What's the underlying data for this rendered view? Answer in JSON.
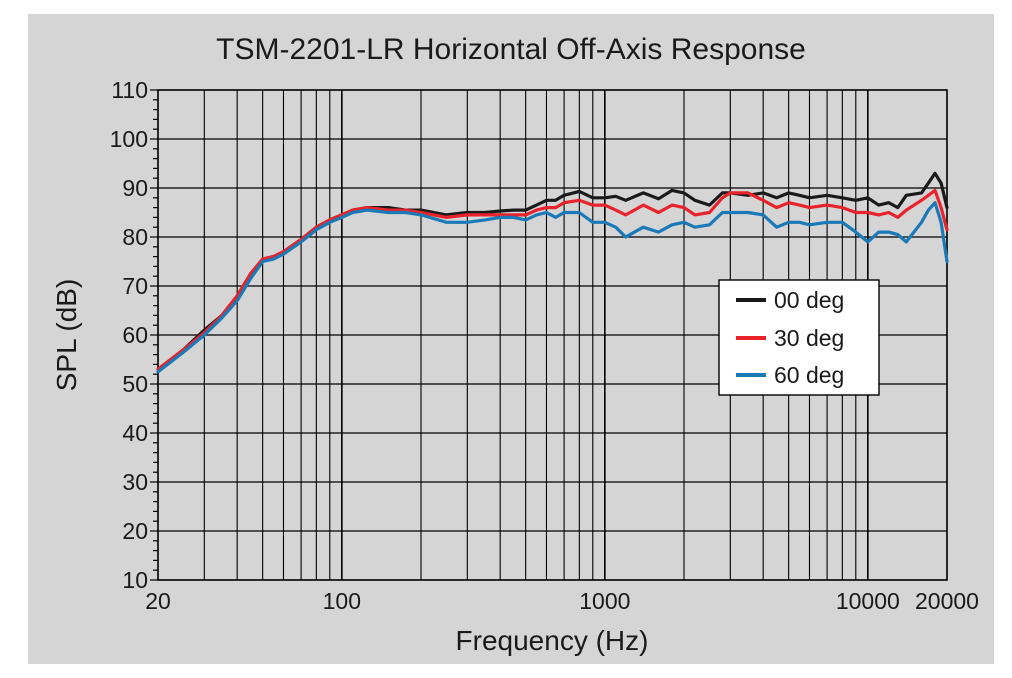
{
  "chart_data": {
    "type": "line",
    "title": "TSM-2201-LR Horizontal Off-Axis Response",
    "xlabel": "Frequency (Hz)",
    "ylabel": "SPL (dB)",
    "x_scale": "log",
    "xlim": [
      20,
      20000
    ],
    "ylim": [
      10,
      110
    ],
    "x_tick_labels": [
      {
        "value": 20,
        "label": "20"
      },
      {
        "value": 100,
        "label": "100"
      },
      {
        "value": 1000,
        "label": "1000"
      },
      {
        "value": 10000,
        "label": "10000"
      },
      {
        "value": 20000,
        "label": "20000"
      }
    ],
    "y_ticks": [
      10,
      20,
      30,
      40,
      50,
      60,
      70,
      80,
      90,
      100,
      110
    ],
    "grid": true,
    "legend_position": "right",
    "series": [
      {
        "name": "00 deg",
        "color": "#1a1a1a",
        "points": [
          [
            20,
            53
          ],
          [
            25,
            57
          ],
          [
            30,
            61
          ],
          [
            35,
            64
          ],
          [
            40,
            68
          ],
          [
            45,
            72.5
          ],
          [
            50,
            75.5
          ],
          [
            55,
            76
          ],
          [
            60,
            77
          ],
          [
            70,
            79.5
          ],
          [
            80,
            82
          ],
          [
            90,
            83.5
          ],
          [
            100,
            84.5
          ],
          [
            110,
            85.5
          ],
          [
            125,
            86
          ],
          [
            150,
            86
          ],
          [
            175,
            85.5
          ],
          [
            200,
            85.5
          ],
          [
            250,
            84.5
          ],
          [
            300,
            85
          ],
          [
            350,
            85
          ],
          [
            400,
            85.3
          ],
          [
            450,
            85.5
          ],
          [
            500,
            85.5
          ],
          [
            550,
            86.5
          ],
          [
            600,
            87.5
          ],
          [
            650,
            87.5
          ],
          [
            700,
            88.5
          ],
          [
            800,
            89.3
          ],
          [
            900,
            88
          ],
          [
            1000,
            88
          ],
          [
            1100,
            88.3
          ],
          [
            1200,
            87.5
          ],
          [
            1400,
            89
          ],
          [
            1600,
            87.8
          ],
          [
            1800,
            89.5
          ],
          [
            2000,
            89
          ],
          [
            2200,
            87.5
          ],
          [
            2500,
            86.5
          ],
          [
            2800,
            89
          ],
          [
            3000,
            89
          ],
          [
            3500,
            88.5
          ],
          [
            4000,
            89
          ],
          [
            4500,
            88
          ],
          [
            5000,
            89
          ],
          [
            5500,
            88.5
          ],
          [
            6000,
            88
          ],
          [
            7000,
            88.5
          ],
          [
            8000,
            88
          ],
          [
            9000,
            87.5
          ],
          [
            10000,
            88
          ],
          [
            11000,
            86.5
          ],
          [
            12000,
            87
          ],
          [
            13000,
            86
          ],
          [
            14000,
            88.5
          ],
          [
            16000,
            89
          ],
          [
            17000,
            91
          ],
          [
            18000,
            93
          ],
          [
            19000,
            91
          ],
          [
            20000,
            86
          ]
        ]
      },
      {
        "name": "30 deg",
        "color": "#e8232b",
        "points": [
          [
            20,
            53
          ],
          [
            25,
            57
          ],
          [
            30,
            60.5
          ],
          [
            35,
            64
          ],
          [
            40,
            68
          ],
          [
            45,
            72.5
          ],
          [
            50,
            75.5
          ],
          [
            55,
            76
          ],
          [
            60,
            77
          ],
          [
            70,
            79.5
          ],
          [
            80,
            82
          ],
          [
            90,
            83.5
          ],
          [
            100,
            84.5
          ],
          [
            110,
            85.5
          ],
          [
            125,
            86
          ],
          [
            150,
            85.5
          ],
          [
            175,
            85.5
          ],
          [
            200,
            85
          ],
          [
            250,
            84
          ],
          [
            300,
            84.5
          ],
          [
            350,
            84.5
          ],
          [
            400,
            84.5
          ],
          [
            450,
            84.5
          ],
          [
            500,
            84.5
          ],
          [
            550,
            85.5
          ],
          [
            600,
            86
          ],
          [
            650,
            86
          ],
          [
            700,
            87
          ],
          [
            800,
            87.5
          ],
          [
            900,
            86.5
          ],
          [
            1000,
            86.5
          ],
          [
            1100,
            85.5
          ],
          [
            1200,
            84.5
          ],
          [
            1400,
            86.5
          ],
          [
            1600,
            85
          ],
          [
            1800,
            86.5
          ],
          [
            2000,
            86
          ],
          [
            2200,
            84.5
          ],
          [
            2500,
            85
          ],
          [
            2800,
            88
          ],
          [
            3000,
            89
          ],
          [
            3500,
            89
          ],
          [
            4000,
            87.5
          ],
          [
            4500,
            86
          ],
          [
            5000,
            87
          ],
          [
            5500,
            86.5
          ],
          [
            6000,
            86
          ],
          [
            7000,
            86.5
          ],
          [
            8000,
            86
          ],
          [
            9000,
            85
          ],
          [
            10000,
            85
          ],
          [
            11000,
            84.5
          ],
          [
            12000,
            85
          ],
          [
            13000,
            84
          ],
          [
            14000,
            85.5
          ],
          [
            16000,
            87.5
          ],
          [
            17000,
            88.5
          ],
          [
            18000,
            89.5
          ],
          [
            19000,
            86
          ],
          [
            20000,
            81.5
          ]
        ]
      },
      {
        "name": "60 deg",
        "color": "#1a7ab8",
        "points": [
          [
            20,
            52.5
          ],
          [
            25,
            56.5
          ],
          [
            30,
            60
          ],
          [
            35,
            63.5
          ],
          [
            40,
            67
          ],
          [
            45,
            71.5
          ],
          [
            50,
            75
          ],
          [
            55,
            75.5
          ],
          [
            60,
            76.5
          ],
          [
            70,
            79
          ],
          [
            80,
            81.5
          ],
          [
            90,
            83
          ],
          [
            100,
            84
          ],
          [
            110,
            85
          ],
          [
            125,
            85.5
          ],
          [
            150,
            85
          ],
          [
            175,
            85
          ],
          [
            200,
            84.5
          ],
          [
            250,
            83
          ],
          [
            300,
            83
          ],
          [
            350,
            83.5
          ],
          [
            400,
            84
          ],
          [
            450,
            84
          ],
          [
            500,
            83.5
          ],
          [
            550,
            84.5
          ],
          [
            600,
            85
          ],
          [
            650,
            84
          ],
          [
            700,
            85
          ],
          [
            800,
            85
          ],
          [
            900,
            83
          ],
          [
            1000,
            83
          ],
          [
            1100,
            82
          ],
          [
            1200,
            80
          ],
          [
            1400,
            82
          ],
          [
            1600,
            81
          ],
          [
            1800,
            82.5
          ],
          [
            2000,
            83
          ],
          [
            2200,
            82
          ],
          [
            2500,
            82.5
          ],
          [
            2800,
            85
          ],
          [
            3000,
            85
          ],
          [
            3500,
            85
          ],
          [
            4000,
            84.5
          ],
          [
            4500,
            82
          ],
          [
            5000,
            83
          ],
          [
            5500,
            83
          ],
          [
            6000,
            82.5
          ],
          [
            7000,
            83
          ],
          [
            8000,
            83
          ],
          [
            9000,
            81
          ],
          [
            10000,
            79
          ],
          [
            11000,
            81
          ],
          [
            12000,
            81
          ],
          [
            13000,
            80.5
          ],
          [
            14000,
            79
          ],
          [
            16000,
            83
          ],
          [
            17000,
            85.5
          ],
          [
            18000,
            87
          ],
          [
            19000,
            83
          ],
          [
            20000,
            75
          ]
        ]
      }
    ]
  }
}
